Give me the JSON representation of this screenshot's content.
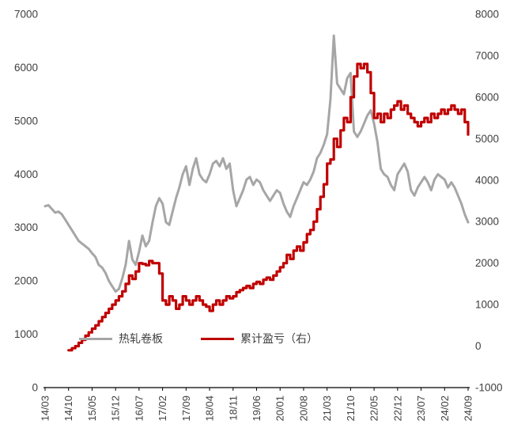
{
  "chart_data": {
    "type": "line",
    "title": "",
    "grid": false,
    "legend_position": "bottom-inside",
    "left_axis": {
      "min": 0,
      "max": 7000,
      "step": 1000
    },
    "right_axis": {
      "min": -1000,
      "max": 8000,
      "step": 1000
    },
    "x_tick_every": 7,
    "x_tick_labels": [
      "14/03",
      "14/10",
      "15/05",
      "15/12",
      "16/07",
      "17/02",
      "17/09",
      "18/04",
      "18/11",
      "19/06",
      "20/01",
      "20/08",
      "21/03",
      "21/10",
      "22/05",
      "22/12",
      "23/07",
      "24/02",
      "24/09"
    ],
    "series": [
      {
        "name": "热轧卷板",
        "axis": "left",
        "color": "#a6a6a6",
        "style": "line",
        "values": [
          3400,
          3420,
          3350,
          3280,
          3300,
          3250,
          3150,
          3050,
          2950,
          2850,
          2750,
          2700,
          2650,
          2600,
          2520,
          2450,
          2300,
          2250,
          2150,
          2000,
          1900,
          1800,
          1850,
          2050,
          2300,
          2750,
          2400,
          2300,
          2550,
          2850,
          2650,
          2750,
          3100,
          3400,
          3550,
          3450,
          3100,
          3050,
          3300,
          3550,
          3750,
          4000,
          4150,
          3800,
          4100,
          4300,
          4000,
          3900,
          3850,
          4000,
          4200,
          4250,
          4150,
          4300,
          4100,
          4200,
          3700,
          3400,
          3550,
          3700,
          3900,
          3950,
          3800,
          3900,
          3850,
          3700,
          3600,
          3500,
          3600,
          3700,
          3650,
          3450,
          3300,
          3200,
          3400,
          3550,
          3700,
          3850,
          3800,
          3900,
          4050,
          4300,
          4400,
          4550,
          4750,
          5400,
          6600,
          5700,
          5600,
          5500,
          5800,
          5900,
          4800,
          4700,
          4800,
          4950,
          5100,
          5200,
          4950,
          4600,
          4100,
          4000,
          3950,
          3800,
          3700,
          4000,
          4100,
          4200,
          4050,
          3700,
          3600,
          3750,
          3850,
          3950,
          3850,
          3700,
          3900,
          4000,
          3950,
          3900,
          3750,
          3850,
          3750,
          3600,
          3450,
          3250,
          3100
        ]
      },
      {
        "name": "累计盈亏（右）",
        "axis": "right",
        "color": "#c00000",
        "style": "step",
        "values": [
          null,
          null,
          null,
          null,
          null,
          null,
          null,
          -100,
          -50,
          0,
          80,
          150,
          250,
          330,
          420,
          500,
          600,
          700,
          800,
          900,
          1000,
          1100,
          1200,
          1320,
          1500,
          1700,
          1620,
          1800,
          2000,
          1980,
          1950,
          2050,
          2000,
          2000,
          1750,
          1100,
          1000,
          1200,
          1100,
          900,
          1000,
          1200,
          1100,
          1000,
          1100,
          1200,
          1100,
          1000,
          950,
          850,
          1000,
          1100,
          1000,
          1100,
          1200,
          1150,
          1200,
          1300,
          1350,
          1400,
          1450,
          1400,
          1500,
          1550,
          1500,
          1600,
          1650,
          1600,
          1700,
          1800,
          1900,
          2000,
          2200,
          2100,
          2300,
          2400,
          2300,
          2500,
          2700,
          2800,
          3000,
          3300,
          3600,
          3900,
          4400,
          4500,
          5000,
          4800,
          5200,
          5500,
          5400,
          6000,
          6500,
          6800,
          6700,
          6800,
          6600,
          6100,
          5500,
          5600,
          5400,
          5600,
          5500,
          5700,
          5800,
          5900,
          5700,
          5800,
          5600,
          5500,
          5400,
          5300,
          5400,
          5500,
          5400,
          5600,
          5500,
          5600,
          5700,
          5600,
          5700,
          5800,
          5700,
          5600,
          5700,
          5400,
          5100
        ]
      }
    ],
    "axis_text_color": "#3f3f3f",
    "axis_line_color": "#000000"
  }
}
